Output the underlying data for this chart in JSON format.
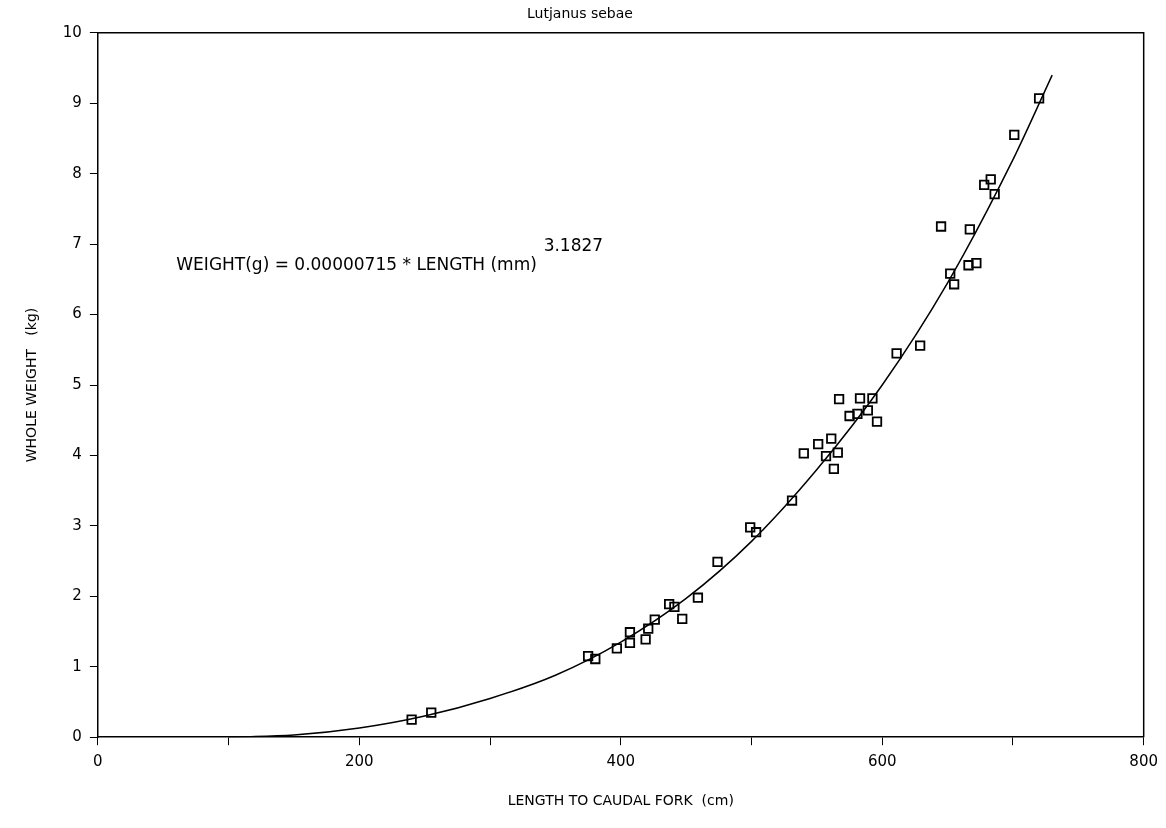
{
  "chart_data": {
    "type": "scatter",
    "title": "Lutjanus sebae",
    "xlabel": "LENGTH TO CAUDAL FORK  (cm)",
    "ylabel": "WHOLE WEIGHT   (kg)",
    "annotations": [
      "WEIGHT(g) = 0.00000715 * LENGTH (mm)$^{3.1827}$"
    ],
    "series": [
      {
        "color": "#000000",
        "marker": "square",
        "x": [
          240,
          255,
          375,
          380.5,
          397,
          407,
          407,
          419,
          421,
          426,
          437,
          441,
          447,
          459,
          474,
          499,
          503.5,
          531,
          540,
          551,
          561,
          557,
          566,
          563,
          567,
          575,
          581,
          583,
          592.5,
          589,
          596,
          611,
          629,
          655,
          652,
          645,
          667,
          666,
          672,
          678,
          683,
          686,
          701,
          720
        ],
        "values": [
          0.25,
          0.35,
          1.15,
          1.11,
          1.26,
          1.49,
          1.34,
          1.39,
          1.54,
          1.67,
          1.89,
          1.85,
          1.68,
          1.98,
          2.49,
          2.98,
          2.91,
          3.36,
          4.03,
          4.16,
          4.24,
          3.99,
          4.04,
          3.81,
          4.8,
          4.56,
          4.59,
          4.81,
          4.81,
          4.64,
          4.48,
          5.45,
          5.56,
          6.43,
          6.58,
          7.25,
          7.21,
          6.7,
          6.73,
          7.84,
          7.92,
          7.71,
          8.55,
          9.07
        ]
      },
      {
        "type": "line",
        "color": "#000000",
        "marker": "none",
        "line_style": "solid",
        "x": [
          100,
          150,
          200,
          250,
          300,
          350,
          400,
          450,
          500,
          550,
          600,
          650,
          700,
          730
        ],
        "values": [
          0,
          0.03,
          0.13,
          0.3,
          0.55,
          0.88,
          1.35,
          1.97,
          2.78,
          3.8,
          5.0,
          6.45,
          8.2,
          9.4
        ]
      }
    ],
    "xlim": [
      0,
      800
    ],
    "xticks": [
      0,
      {
        "value": 100,
        "label": null
      },
      200,
      {
        "value": 300,
        "label": null
      },
      400,
      {
        "value": 500,
        "label": null
      },
      600,
      {
        "value": 700,
        "label": null
      },
      800
    ],
    "ylim": [
      0,
      10
    ],
    "yticks": [
      0,
      1,
      2,
      3,
      4,
      5,
      6,
      7,
      8,
      9,
      10
    ],
    "grid": false,
    "legend": false
  }
}
